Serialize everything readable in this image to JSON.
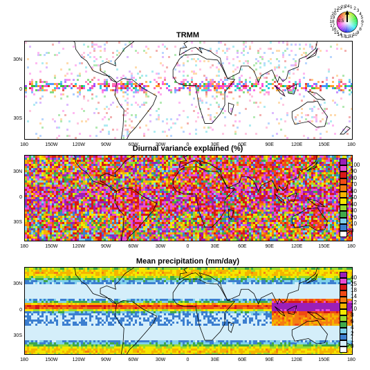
{
  "panels": [
    {
      "title": "TRMM",
      "kind": "phase"
    },
    {
      "title": "Diurnal variance explained (%)",
      "kind": "variance"
    },
    {
      "title": "Mean precipitation (mm/day)",
      "kind": "precip"
    }
  ],
  "lat_labels": [
    "30N",
    "0",
    "30S"
  ],
  "lon_labels": [
    "180",
    "150W",
    "120W",
    "90W",
    "60W",
    "30W",
    "0",
    "30E",
    "60E",
    "90E",
    "120E",
    "150E",
    "180"
  ],
  "variance_legend": {
    "labels": [
      "100",
      "90",
      "80",
      "70",
      "60",
      "50",
      "40",
      "30",
      "20",
      "10",
      "0"
    ],
    "colors": [
      "#9b1fb7",
      "#e84cd5",
      "#d81818",
      "#f04a14",
      "#f57d12",
      "#f5b400",
      "#f5e600",
      "#9adc2e",
      "#3fa84a",
      "#7fd0ea",
      "#3c7fd0",
      "#ffffff"
    ]
  },
  "precip_legend": {
    "labels": [
      "40",
      "25",
      "18",
      "14",
      "12",
      "10",
      "8",
      "6",
      "4",
      "2",
      "1",
      "0"
    ],
    "colors": [
      "#9b1fb7",
      "#e84cd5",
      "#d81818",
      "#f04a14",
      "#f57d12",
      "#f5b400",
      "#f5e600",
      "#9adc2e",
      "#3fa84a",
      "#7fd0ea",
      "#3c7fd0",
      "#d4eefa",
      "#ffffff"
    ]
  },
  "phase_wheel": {
    "hours": [
      "24",
      "1",
      "2",
      "3",
      "4",
      "5",
      "6",
      "7",
      "8",
      "9",
      "10",
      "11",
      "12",
      "13",
      "14",
      "15",
      "16",
      "17",
      "18",
      "19",
      "20",
      "21",
      "22",
      "23"
    ],
    "amplitude_label": "0.5"
  }
}
